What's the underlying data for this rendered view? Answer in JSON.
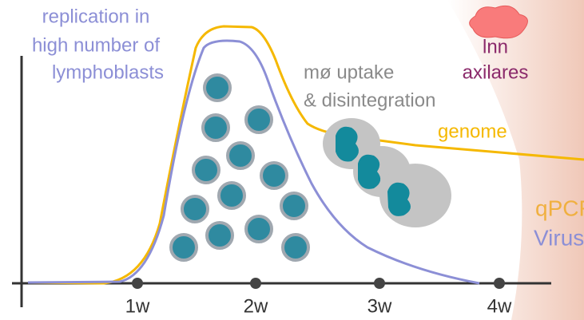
{
  "labels": {
    "replication": [
      "replication in",
      "high number of",
      "lymphoblasts"
    ],
    "uptake": [
      "mø uptake",
      "& disintegration"
    ],
    "lymph_node": [
      "lnn",
      "axilares"
    ],
    "genome": "genome",
    "qpcr": "qPCR",
    "virus": "Virus"
  },
  "x_axis": {
    "ticks": [
      "1w",
      "2w",
      "3w",
      "4w"
    ]
  }
}
